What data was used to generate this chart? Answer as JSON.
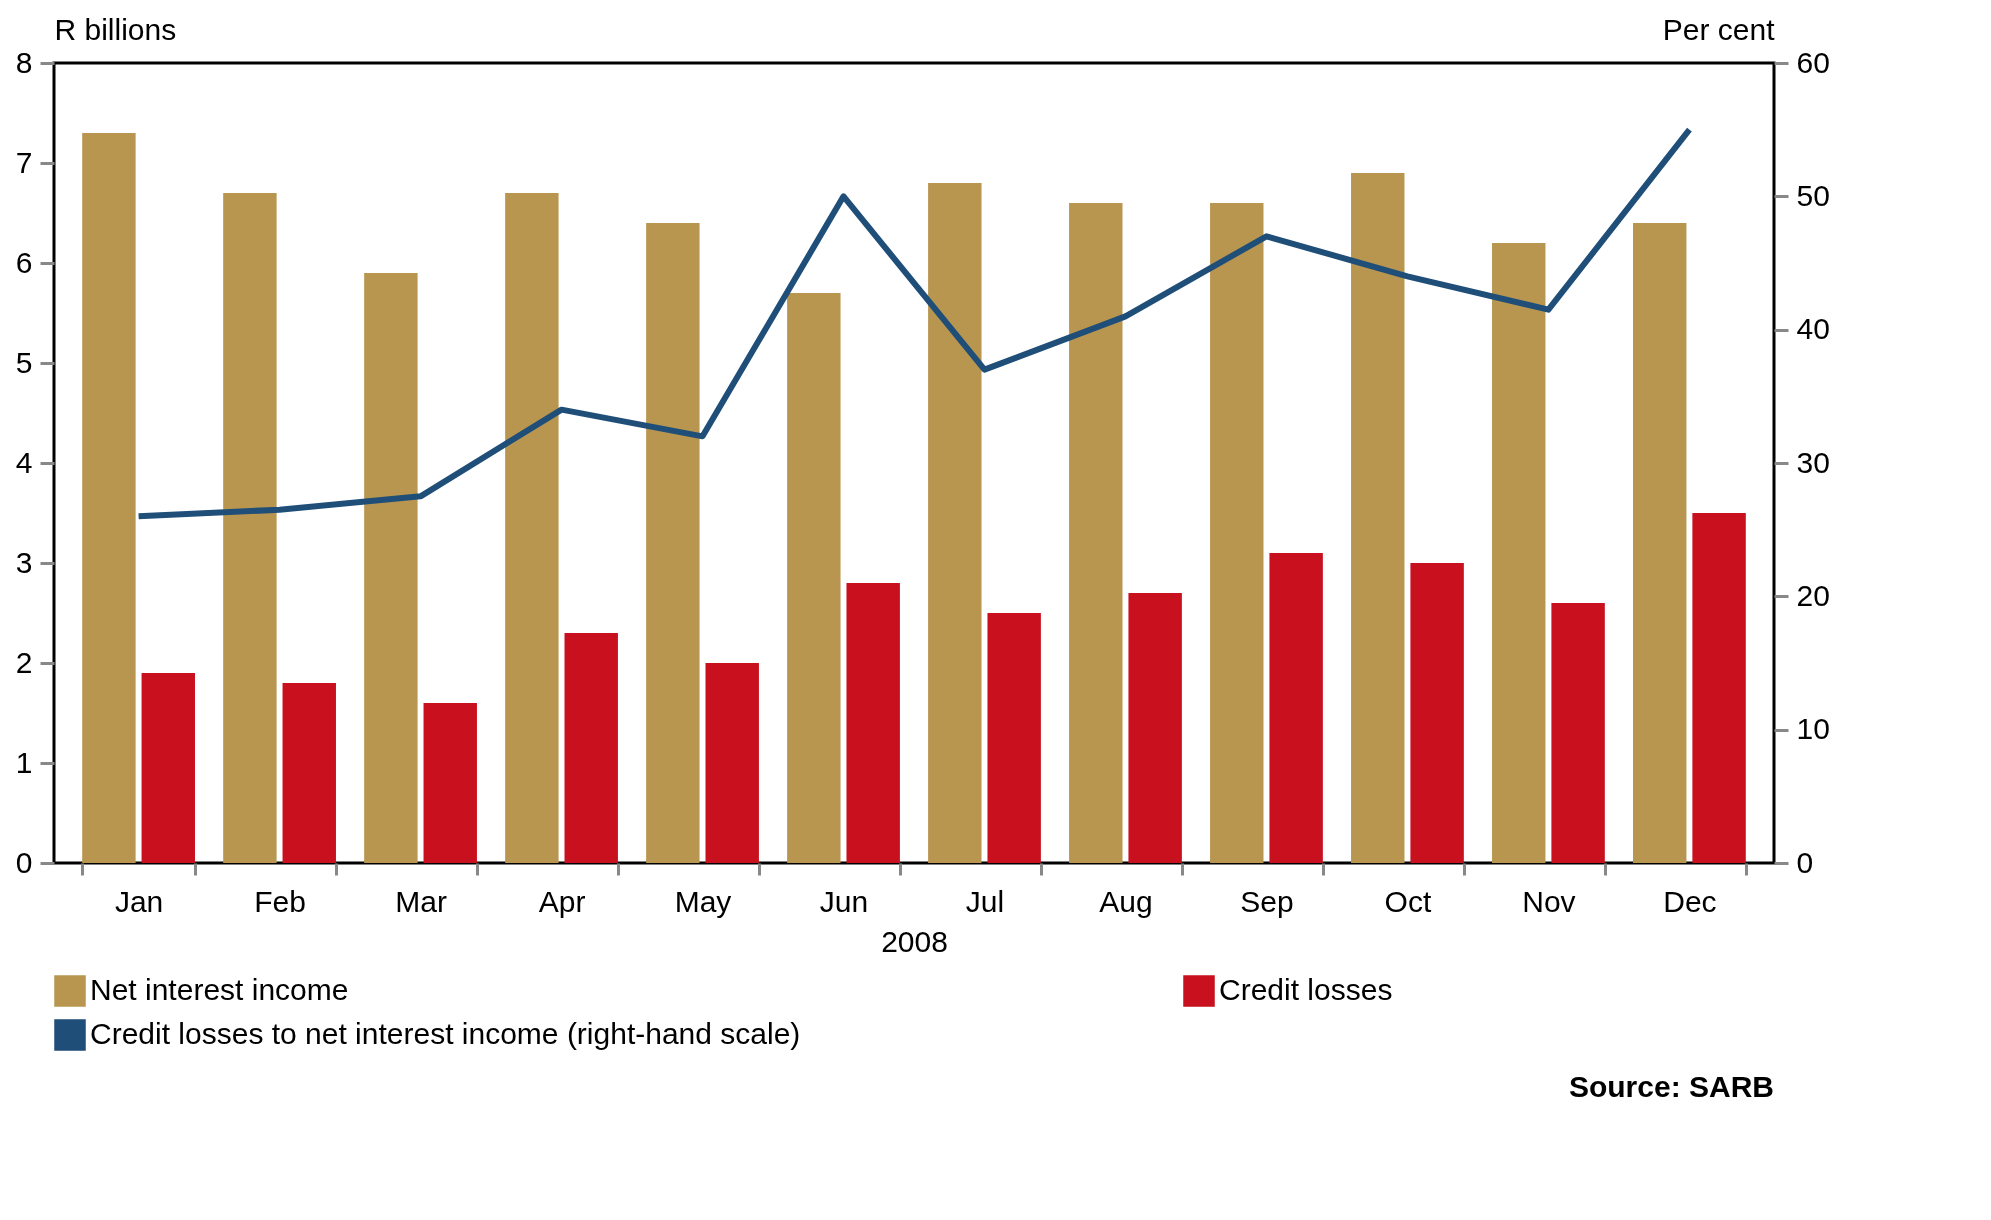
{
  "chart_data": {
    "type": "bar",
    "xlabel": "2008",
    "ylabel": "R billions",
    "y2label": "Per cent",
    "categories": [
      "Jan",
      "Feb",
      "Mar",
      "Apr",
      "May",
      "Jun",
      "Jul",
      "Aug",
      "Sep",
      "Oct",
      "Nov",
      "Dec"
    ],
    "series": [
      {
        "name": "Net interest income",
        "color": "#b8964f",
        "values": [
          7.3,
          6.7,
          5.9,
          6.7,
          6.4,
          5.7,
          6.8,
          6.6,
          6.6,
          6.9,
          6.2,
          6.4
        ]
      },
      {
        "name": "Credit losses",
        "color": "#c8101e",
        "values": [
          1.9,
          1.8,
          1.6,
          2.3,
          2.0,
          2.8,
          2.5,
          2.7,
          3.1,
          3.0,
          2.6,
          3.5
        ]
      },
      {
        "name": "Credit losses to net interest income (right-hand scale)",
        "type": "line",
        "axis": "y2",
        "color": "#1f4e79",
        "values": [
          26,
          26.5,
          27.5,
          34,
          32,
          50,
          37,
          41,
          47,
          44,
          41.5,
          55
        ]
      }
    ],
    "ylim": [
      0,
      8
    ],
    "yticks": [
      0,
      1,
      2,
      3,
      4,
      5,
      6,
      7,
      8
    ],
    "y2lim": [
      0,
      60
    ],
    "y2ticks": [
      0,
      10,
      20,
      30,
      40,
      50,
      60
    ],
    "grid": false,
    "legend": "bottom",
    "annotations": [
      "Source: SARB"
    ]
  }
}
